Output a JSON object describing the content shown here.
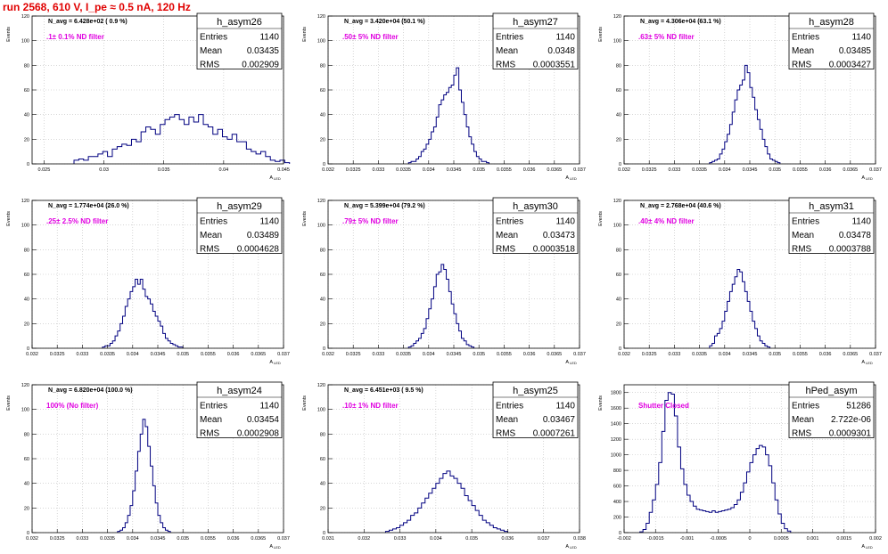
{
  "run_title": "run 2568,   610 V, I_pe ≈ 0.5 nA, 120 Hz",
  "colors": {
    "hist": "#000080",
    "annotation": "#e000e0",
    "title": "#e00000",
    "grid": "#bdbdbd"
  },
  "y_axis_label": "Events",
  "chart_data": [
    {
      "type": "bar",
      "stat_name": "h_asym26",
      "stats": [
        [
          "Entries",
          "1140"
        ],
        [
          "Mean",
          "0.03435"
        ],
        [
          "RMS",
          "0.002909"
        ]
      ],
      "navg": "N_avg = 6.428e+02 ( 0.9 %)",
      "annotation": ".1± 0.1% ND filter",
      "xlabel": "A",
      "xlabel_sub": "LED",
      "xlim": [
        0.024,
        0.045
      ],
      "ylim": [
        0,
        120
      ],
      "x_ticks": [
        0.025,
        0.03,
        0.035,
        0.04,
        0.045
      ],
      "x_tick_labels": [
        "0.025",
        "0.03",
        "0.035",
        "0.04",
        "0.045"
      ],
      "y_ticks": [
        0,
        20,
        40,
        60,
        80,
        100,
        120
      ],
      "y_tick_labels": [
        "0",
        "20",
        "40",
        "60",
        "80",
        "100",
        "120"
      ],
      "bins": {
        "start": 0.0275,
        "width": 0.0004,
        "values": [
          3,
          4,
          3,
          6,
          6,
          8,
          10,
          6,
          12,
          14,
          16,
          15,
          20,
          18,
          26,
          30,
          28,
          24,
          32,
          36,
          38,
          40,
          36,
          32,
          38,
          34,
          40,
          32,
          30,
          24,
          28,
          22,
          20,
          24,
          18,
          18,
          12,
          10,
          8,
          10,
          6,
          3,
          2,
          3,
          1
        ]
      }
    },
    {
      "type": "bar",
      "stat_name": "h_asym27",
      "stats": [
        [
          "Entries",
          "1140"
        ],
        [
          "Mean",
          "0.0348"
        ],
        [
          "RMS",
          "0.0003551"
        ]
      ],
      "navg": "N_avg = 3.420e+04 (50.1 %)",
      "annotation": ".50± 5% ND filter",
      "xlabel": "A",
      "xlabel_sub": "LED",
      "xlim": [
        0.032,
        0.037
      ],
      "ylim": [
        0,
        120
      ],
      "x_ticks": [
        0.032,
        0.0325,
        0.033,
        0.0335,
        0.034,
        0.0345,
        0.035,
        0.0355,
        0.036,
        0.0365,
        0.037
      ],
      "x_tick_labels": [
        "0.032",
        "0.0325",
        "0.033",
        "0.0335",
        "0.034",
        "0.0345",
        "0.035",
        "0.0355",
        "0.036",
        "0.0365",
        "0.037"
      ],
      "y_ticks": [
        0,
        20,
        40,
        60,
        80,
        100,
        120
      ],
      "y_tick_labels": [
        "0",
        "20",
        "40",
        "60",
        "80",
        "100",
        "120"
      ],
      "bins": {
        "start": 0.0336,
        "width": 5e-05,
        "values": [
          1,
          2,
          2,
          4,
          6,
          10,
          12,
          16,
          20,
          26,
          30,
          38,
          48,
          52,
          56,
          58,
          62,
          64,
          72,
          78,
          60,
          50,
          40,
          30,
          22,
          16,
          10,
          6,
          4,
          2,
          2,
          1
        ]
      }
    },
    {
      "type": "bar",
      "stat_name": "h_asym28",
      "stats": [
        [
          "Entries",
          "1140"
        ],
        [
          "Mean",
          "0.03485"
        ],
        [
          "RMS",
          "0.0003427"
        ]
      ],
      "navg": "N_avg = 4.306e+04 (63.1 %)",
      "annotation": ".63± 5% ND filter",
      "xlabel": "A",
      "xlabel_sub": "LED",
      "xlim": [
        0.032,
        0.037
      ],
      "ylim": [
        0,
        120
      ],
      "x_ticks": [
        0.032,
        0.0325,
        0.033,
        0.0335,
        0.034,
        0.0345,
        0.035,
        0.0355,
        0.036,
        0.0365,
        0.037
      ],
      "x_tick_labels": [
        "0.032",
        "0.0325",
        "0.033",
        "0.0335",
        "0.034",
        "0.0345",
        "0.035",
        "0.0355",
        "0.036",
        "0.0365",
        "0.037"
      ],
      "y_ticks": [
        0,
        20,
        40,
        60,
        80,
        100,
        120
      ],
      "y_tick_labels": [
        "0",
        "20",
        "40",
        "60",
        "80",
        "100",
        "120"
      ],
      "bins": {
        "start": 0.0337,
        "width": 5e-05,
        "values": [
          1,
          2,
          3,
          4,
          8,
          12,
          18,
          24,
          32,
          42,
          52,
          60,
          64,
          68,
          80,
          74,
          62,
          54,
          44,
          36,
          28,
          20,
          14,
          8,
          4,
          3,
          2,
          1
        ]
      }
    },
    {
      "type": "bar",
      "stat_name": "h_asym29",
      "stats": [
        [
          "Entries",
          "1140"
        ],
        [
          "Mean",
          "0.03489"
        ],
        [
          "RMS",
          "0.0004628"
        ]
      ],
      "navg": "N_avg = 1.774e+04 (26.0 %)",
      "annotation": ".25± 2.5% ND filter",
      "xlabel": "A",
      "xlabel_sub": "LED",
      "xlim": [
        0.032,
        0.037
      ],
      "ylim": [
        0,
        120
      ],
      "x_ticks": [
        0.032,
        0.0325,
        0.033,
        0.0335,
        0.034,
        0.0345,
        0.035,
        0.0355,
        0.036,
        0.0365,
        0.037
      ],
      "x_tick_labels": [
        "0.032",
        "0.0325",
        "0.033",
        "0.0335",
        "0.034",
        "0.0345",
        "0.035",
        "0.0355",
        "0.036",
        "0.0365",
        "0.037"
      ],
      "y_ticks": [
        0,
        20,
        40,
        60,
        80,
        100,
        120
      ],
      "y_tick_labels": [
        "0",
        "20",
        "40",
        "60",
        "80",
        "100",
        "120"
      ],
      "bins": {
        "start": 0.0334,
        "width": 5e-05,
        "values": [
          1,
          2,
          2,
          4,
          6,
          10,
          14,
          20,
          26,
          34,
          40,
          46,
          50,
          56,
          52,
          56,
          48,
          42,
          40,
          36,
          30,
          26,
          22,
          18,
          12,
          8,
          6,
          4,
          3,
          2,
          1,
          1
        ]
      }
    },
    {
      "type": "bar",
      "stat_name": "h_asym30",
      "stats": [
        [
          "Entries",
          "1140"
        ],
        [
          "Mean",
          "0.03473"
        ],
        [
          "RMS",
          "0.0003518"
        ]
      ],
      "navg": "N_avg = 5.399e+04 (79.2 %)",
      "annotation": ".79± 5% ND filter",
      "xlabel": "A",
      "xlabel_sub": "LED",
      "xlim": [
        0.032,
        0.037
      ],
      "ylim": [
        0,
        120
      ],
      "x_ticks": [
        0.032,
        0.0325,
        0.033,
        0.0335,
        0.034,
        0.0345,
        0.035,
        0.0355,
        0.036,
        0.0365,
        0.037
      ],
      "x_tick_labels": [
        "0.032",
        "0.0325",
        "0.033",
        "0.0335",
        "0.034",
        "0.0345",
        "0.035",
        "0.0355",
        "0.036",
        "0.0365",
        "0.037"
      ],
      "y_ticks": [
        0,
        20,
        40,
        60,
        80,
        100,
        120
      ],
      "y_tick_labels": [
        "0",
        "20",
        "40",
        "60",
        "80",
        "100",
        "120"
      ],
      "bins": {
        "start": 0.0336,
        "width": 5e-05,
        "values": [
          1,
          2,
          4,
          6,
          8,
          12,
          16,
          24,
          32,
          40,
          50,
          60,
          62,
          68,
          64,
          56,
          46,
          36,
          28,
          20,
          14,
          8,
          6,
          3,
          2,
          1
        ]
      }
    },
    {
      "type": "bar",
      "stat_name": "h_asym31",
      "stats": [
        [
          "Entries",
          "1140"
        ],
        [
          "Mean",
          "0.03478"
        ],
        [
          "RMS",
          "0.0003788"
        ]
      ],
      "navg": "N_avg = 2.768e+04 (40.6 %)",
      "annotation": ".40± 4% ND filter",
      "xlabel": "A",
      "xlabel_sub": "LED",
      "xlim": [
        0.032,
        0.037
      ],
      "ylim": [
        0,
        120
      ],
      "x_ticks": [
        0.032,
        0.0325,
        0.033,
        0.0335,
        0.034,
        0.0345,
        0.035,
        0.0355,
        0.036,
        0.0365,
        0.037
      ],
      "x_tick_labels": [
        "0.032",
        "0.0325",
        "0.033",
        "0.0335",
        "0.034",
        "0.0345",
        "0.035",
        "0.0355",
        "0.036",
        "0.0365",
        "0.037"
      ],
      "y_ticks": [
        0,
        20,
        40,
        60,
        80,
        100,
        120
      ],
      "y_tick_labels": [
        "0",
        "20",
        "40",
        "60",
        "80",
        "100",
        "120"
      ],
      "bins": {
        "start": 0.0337,
        "width": 5e-05,
        "values": [
          2,
          4,
          10,
          12,
          16,
          22,
          30,
          38,
          46,
          52,
          58,
          64,
          62,
          54,
          46,
          38,
          30,
          22,
          16,
          10,
          6,
          4,
          2,
          1
        ]
      }
    },
    {
      "type": "bar",
      "stat_name": "h_asym24",
      "stats": [
        [
          "Entries",
          "1140"
        ],
        [
          "Mean",
          "0.03454"
        ],
        [
          "RMS",
          "0.0002908"
        ]
      ],
      "navg": "N_avg = 6.820e+04 (100.0 %)",
      "annotation": "100% (No filter)",
      "xlabel": "A",
      "xlabel_sub": "LED",
      "xlim": [
        0.032,
        0.037
      ],
      "ylim": [
        0,
        120
      ],
      "x_ticks": [
        0.032,
        0.0325,
        0.033,
        0.0335,
        0.034,
        0.0345,
        0.035,
        0.0355,
        0.036,
        0.0365,
        0.037
      ],
      "x_tick_labels": [
        "0.032",
        "0.0325",
        "0.033",
        "0.0335",
        "0.034",
        "0.0345",
        "0.035",
        "0.0355",
        "0.036",
        "0.0365",
        "0.037"
      ],
      "y_ticks": [
        0,
        20,
        40,
        60,
        80,
        100,
        120
      ],
      "y_tick_labels": [
        "0",
        "20",
        "40",
        "60",
        "80",
        "100",
        "120"
      ],
      "bins": {
        "start": 0.0337,
        "width": 5e-05,
        "values": [
          1,
          2,
          4,
          8,
          14,
          22,
          34,
          50,
          66,
          80,
          92,
          86,
          70,
          54,
          38,
          24,
          14,
          8,
          4,
          2,
          1
        ]
      }
    },
    {
      "type": "bar",
      "stat_name": "h_asym25",
      "stats": [
        [
          "Entries",
          "1140"
        ],
        [
          "Mean",
          "0.03467"
        ],
        [
          "RMS",
          "0.0007261"
        ]
      ],
      "navg": "N_avg = 6.451e+03 ( 9.5 %)",
      "annotation": ".10± 1% ND filter",
      "xlabel": "A",
      "xlabel_sub": "LED",
      "xlim": [
        0.031,
        0.038
      ],
      "ylim": [
        0,
        120
      ],
      "x_ticks": [
        0.031,
        0.032,
        0.033,
        0.034,
        0.035,
        0.036,
        0.037,
        0.038
      ],
      "x_tick_labels": [
        "0.031",
        "0.032",
        "0.033",
        "0.034",
        "0.035",
        "0.036",
        "0.037",
        "0.038"
      ],
      "y_ticks": [
        0,
        20,
        40,
        60,
        80,
        100,
        120
      ],
      "y_tick_labels": [
        "0",
        "20",
        "40",
        "60",
        "80",
        "100",
        "120"
      ],
      "bins": {
        "start": 0.0326,
        "width": 0.0001,
        "values": [
          1,
          2,
          3,
          4,
          6,
          8,
          10,
          14,
          16,
          20,
          24,
          28,
          32,
          36,
          40,
          44,
          48,
          50,
          46,
          44,
          40,
          36,
          30,
          26,
          22,
          18,
          14,
          10,
          8,
          6,
          4,
          3,
          2,
          1
        ]
      }
    },
    {
      "type": "bar",
      "stat_name": "hPed_asym",
      "stats": [
        [
          "Entries",
          "51286"
        ],
        [
          "Mean",
          "2.722e-06"
        ],
        [
          "RMS",
          "0.0009301"
        ]
      ],
      "navg": "",
      "annotation": "Shutter Closed",
      "xlabel": "A",
      "xlabel_sub": "LED",
      "xlim": [
        -0.002,
        0.002
      ],
      "ylim": [
        0,
        1900
      ],
      "x_ticks": [
        -0.002,
        -0.0015,
        -0.001,
        -0.0005,
        0,
        0.0005,
        0.001,
        0.0015,
        0.002
      ],
      "x_tick_labels": [
        "-0.002",
        "-0.0015",
        "-0.001",
        "-0.0005",
        "0",
        "0.0005",
        "0.001",
        "0.0015",
        "0.002"
      ],
      "y_ticks": [
        0,
        200,
        400,
        600,
        800,
        1000,
        1200,
        1400,
        1600,
        1800
      ],
      "y_tick_labels": [
        "0",
        "200",
        "400",
        "600",
        "800",
        "1000",
        "1200",
        "1400",
        "1600",
        "1800"
      ],
      "bins": {
        "start": -0.00175,
        "width": 5e-05,
        "values": [
          10,
          40,
          120,
          260,
          420,
          620,
          900,
          1300,
          1700,
          1800,
          1780,
          1500,
          1100,
          820,
          620,
          480,
          400,
          340,
          300,
          290,
          280,
          270,
          260,
          280,
          260,
          270,
          280,
          290,
          300,
          320,
          360,
          420,
          520,
          640,
          780,
          900,
          1000,
          1080,
          1120,
          1100,
          1000,
          860,
          640,
          420,
          240,
          120,
          50,
          20
        ]
      }
    }
  ]
}
